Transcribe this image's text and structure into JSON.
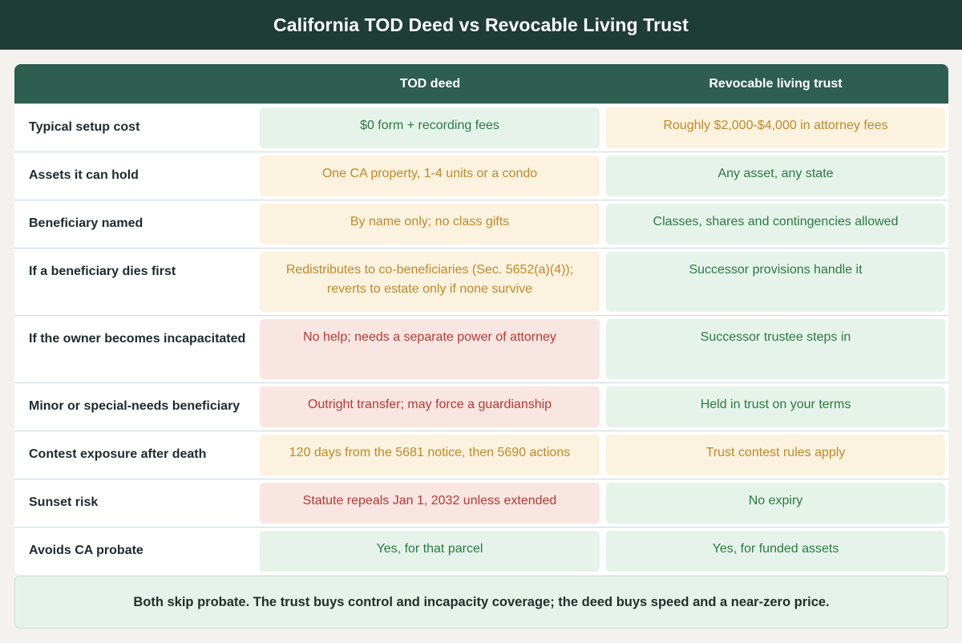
{
  "title": "California TOD Deed vs Revocable Living Trust",
  "header": {
    "col1": "",
    "col2": "TOD deed",
    "col3": "Revocable living trust"
  },
  "rows": [
    {
      "label": "Typical setup cost",
      "tod": "$0 form + recording fees",
      "tod_rating": "good",
      "trust": "Roughly $2,000-$4,000 in attorney fees",
      "trust_rating": "mid"
    },
    {
      "label": "Assets it can hold",
      "tod": "One CA property, 1-4 units or a condo",
      "tod_rating": "mid",
      "trust": "Any asset, any state",
      "trust_rating": "good"
    },
    {
      "label": "Beneficiary named",
      "tod": "By name only; no class gifts",
      "tod_rating": "mid",
      "trust": "Classes, shares and contingencies allowed",
      "trust_rating": "good"
    },
    {
      "label": "If a beneficiary dies first",
      "tod": "Redistributes to co-beneficiaries (Sec. 5652(a)(4)); reverts to estate only if none survive",
      "tod_rating": "mid",
      "trust": "Successor provisions handle it",
      "trust_rating": "good"
    },
    {
      "label": "If the owner becomes incapacitated",
      "tod": "No help; needs a separate power of attorney",
      "tod_rating": "bad",
      "trust": "Successor trustee steps in",
      "trust_rating": "good"
    },
    {
      "label": "Minor or special-needs beneficiary",
      "tod": "Outright transfer; may force a guardianship",
      "tod_rating": "bad",
      "trust": "Held in trust on your terms",
      "trust_rating": "good"
    },
    {
      "label": "Contest exposure after death",
      "tod": "120 days from the 5681 notice, then 5690 actions",
      "tod_rating": "mid",
      "trust": "Trust contest rules apply",
      "trust_rating": "mid"
    },
    {
      "label": "Sunset risk",
      "tod": "Statute repeals Jan 1, 2032 unless extended",
      "tod_rating": "bad",
      "trust": "No expiry",
      "trust_rating": "good"
    },
    {
      "label": "Avoids CA probate",
      "tod": "Yes, for that parcel",
      "tod_rating": "good",
      "trust": "Yes, for funded assets",
      "trust_rating": "good"
    }
  ],
  "summary": "Both skip probate. The trust buys control and incapacity coverage; the deed buys speed and a near-zero price.",
  "colors": {
    "title_bg": "#1e3d35",
    "header_bg": "#2e5e50",
    "good_bg": "#e6f3ea",
    "good_text": "#2a7a44",
    "mid_bg": "#fbf2df",
    "mid_text": "#c08a2a",
    "bad_bg": "#f9e5e2",
    "bad_text": "#b73a32"
  }
}
